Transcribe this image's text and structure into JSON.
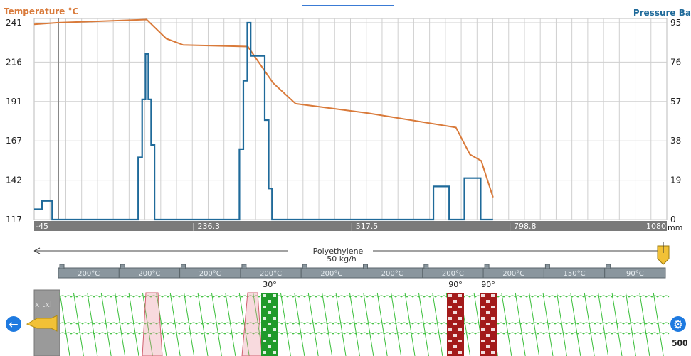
{
  "header_left": "Temperature °C",
  "header_right": "Pressure Ba",
  "colors": {
    "temperature": "#d97a3a",
    "pressure": "#1f6a9a",
    "grid": "#cfcfcf",
    "axis_band": "#7a7a7a"
  },
  "chart_data": {
    "type": "line",
    "x_ticks": [
      "-45",
      "| 236.3",
      "| 517.5",
      "| 798.8",
      "1080"
    ],
    "x_unit": "mm",
    "left_axis": {
      "title": "Temperature °C",
      "ticks": [
        "241",
        "216",
        "191",
        "167",
        "142",
        "117"
      ],
      "range": [
        117,
        241
      ]
    },
    "right_axis": {
      "title": "Pressure Ba",
      "ticks": [
        "95",
        "76",
        "57",
        "38",
        "19",
        "0"
      ],
      "range": [
        0,
        95
      ]
    },
    "series": [
      {
        "name": "Temperature °C",
        "color": "#d97a3a",
        "points": [
          [
            -45,
            240
          ],
          [
            -5,
            241
          ],
          [
            155,
            243
          ],
          [
            190,
            231
          ],
          [
            220,
            227
          ],
          [
            335,
            226
          ],
          [
            380,
            203
          ],
          [
            420,
            190
          ],
          [
            550,
            184
          ],
          [
            705,
            175
          ],
          [
            730,
            158
          ],
          [
            750,
            154
          ],
          [
            771,
            131
          ]
        ]
      },
      {
        "name": "Pressure Ba",
        "color": "#1f6a9a",
        "points": [
          [
            -45,
            5
          ],
          [
            -31,
            5
          ],
          [
            -31,
            9
          ],
          [
            -13,
            9
          ],
          [
            -13,
            9
          ],
          [
            -13,
            0
          ],
          [
            140,
            0
          ],
          [
            140,
            30
          ],
          [
            147,
            30
          ],
          [
            147,
            58
          ],
          [
            153,
            58
          ],
          [
            153,
            80
          ],
          [
            158,
            80
          ],
          [
            158,
            58
          ],
          [
            163,
            58
          ],
          [
            163,
            36
          ],
          [
            169,
            36
          ],
          [
            169,
            0
          ],
          [
            320,
            0
          ],
          [
            320,
            34
          ],
          [
            327,
            34
          ],
          [
            327,
            67
          ],
          [
            334,
            67
          ],
          [
            334,
            95
          ],
          [
            340,
            95
          ],
          [
            340,
            79
          ],
          [
            365,
            79
          ],
          [
            365,
            48
          ],
          [
            372,
            48
          ],
          [
            372,
            15
          ],
          [
            378,
            15
          ],
          [
            378,
            0
          ],
          [
            665,
            0
          ],
          [
            665,
            16
          ],
          [
            693,
            16
          ],
          [
            693,
            0
          ],
          [
            720,
            0
          ],
          [
            720,
            20
          ],
          [
            749,
            20
          ],
          [
            749,
            0
          ],
          [
            771,
            0
          ]
        ]
      }
    ]
  },
  "material": {
    "name": "Polyethylene",
    "rate": "50 kg/h",
    "barrel_end": "500"
  },
  "zones": [
    "200°C",
    "200°C",
    "200°C",
    "200°C",
    "200°C",
    "200°C",
    "200°C",
    "200°C",
    "150°C",
    "90°C"
  ],
  "kneading": [
    {
      "label": "30°",
      "color": "green"
    },
    {
      "label": "90°",
      "color": "red"
    },
    {
      "label": "90°",
      "color": "red"
    }
  ],
  "screw_labels": [
    "x",
    "txl"
  ]
}
